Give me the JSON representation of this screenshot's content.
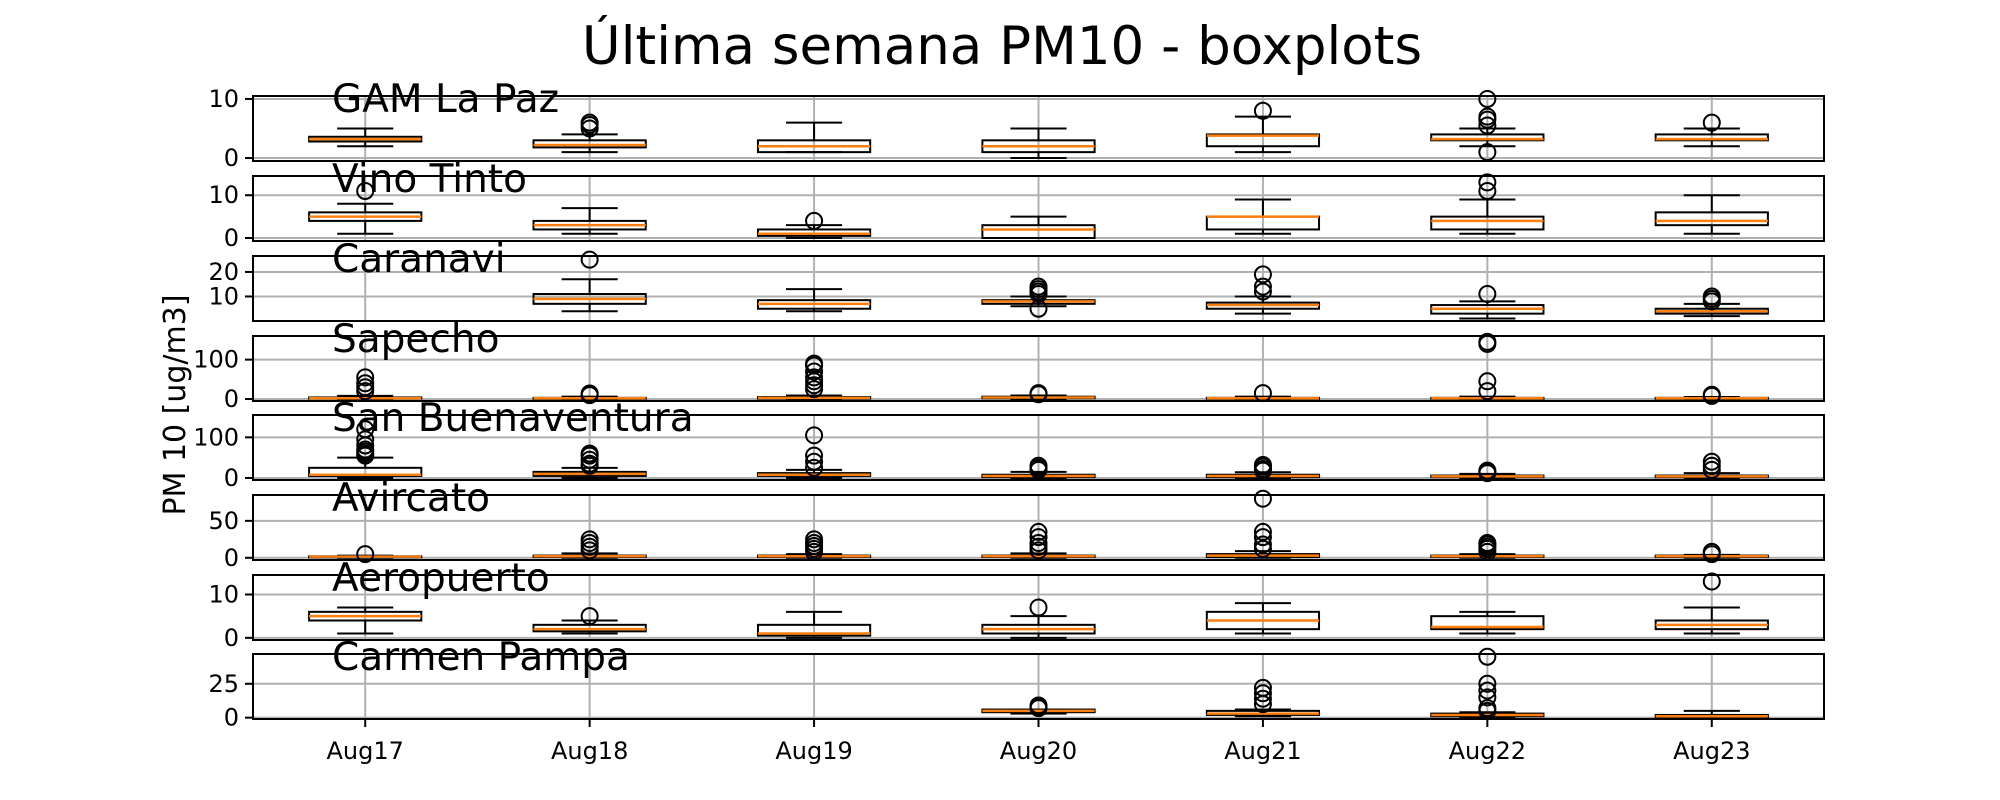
{
  "chart_data": {
    "type": "boxplot",
    "title": "Última semana PM10 - boxplots",
    "ylabel": "PM 10 [ug/m3]",
    "categories": [
      "Aug17",
      "Aug18",
      "Aug19",
      "Aug20",
      "Aug21",
      "Aug22",
      "Aug23"
    ],
    "grid": true,
    "colors": {
      "box": "#000000",
      "median": "#ff7f0e",
      "grid": "#b0b0b0"
    },
    "panels": [
      {
        "name": "GAM La Paz",
        "ylim": [
          -0.5,
          10.5
        ],
        "yticks": [
          0,
          10
        ],
        "boxes": [
          {
            "whislo": 2,
            "q1": 2.8,
            "med": 3.2,
            "q3": 3.6,
            "whishi": 5,
            "fliers": []
          },
          {
            "whislo": 1,
            "q1": 1.8,
            "med": 2.2,
            "q3": 3,
            "whishi": 4,
            "fliers": [
              5,
              5.6,
              6
            ]
          },
          {
            "whislo": 1,
            "q1": 1,
            "med": 2,
            "q3": 3,
            "whishi": 6,
            "fliers": []
          },
          {
            "whislo": 0,
            "q1": 1,
            "med": 2,
            "q3": 3,
            "whishi": 5,
            "fliers": []
          },
          {
            "whislo": 1,
            "q1": 2,
            "med": 3.8,
            "q3": 4,
            "whishi": 7,
            "fliers": [
              8
            ]
          },
          {
            "whislo": 2,
            "q1": 3,
            "med": 3.2,
            "q3": 4,
            "whishi": 5,
            "fliers": [
              1,
              5.5,
              6.5,
              7,
              10
            ]
          },
          {
            "whislo": 2,
            "q1": 3,
            "med": 3.2,
            "q3": 4,
            "whishi": 5,
            "fliers": [
              6
            ]
          }
        ]
      },
      {
        "name": "Vino Tinto",
        "ylim": [
          -0.7,
          14.5
        ],
        "yticks": [
          0,
          10
        ],
        "boxes": [
          {
            "whislo": 1,
            "q1": 4,
            "med": 5,
            "q3": 6,
            "whishi": 8,
            "fliers": [
              11
            ]
          },
          {
            "whislo": 1,
            "q1": 2,
            "med": 3,
            "q3": 4,
            "whishi": 7,
            "fliers": []
          },
          {
            "whislo": 0,
            "q1": 0.5,
            "med": 1,
            "q3": 2,
            "whishi": 3,
            "fliers": [
              4
            ]
          },
          {
            "whislo": 0,
            "q1": 0,
            "med": 2,
            "q3": 3,
            "whishi": 5,
            "fliers": []
          },
          {
            "whislo": 1,
            "q1": 2,
            "med": 5,
            "q3": 5,
            "whishi": 9,
            "fliers": []
          },
          {
            "whislo": 1,
            "q1": 2,
            "med": 4,
            "q3": 5,
            "whishi": 9,
            "fliers": [
              11,
              13
            ]
          },
          {
            "whislo": 1,
            "q1": 3,
            "med": 4,
            "q3": 6,
            "whishi": 10,
            "fliers": []
          }
        ]
      },
      {
        "name": "Caranavi",
        "ylim": [
          0,
          26.5
        ],
        "yticks": [
          10,
          20
        ],
        "boxes": null,
        "boxes_list": [
          null,
          {
            "whislo": 4,
            "q1": 7,
            "med": 9,
            "q3": 11,
            "whishi": 17,
            "fliers": [
              25
            ]
          },
          {
            "whislo": 4,
            "q1": 5,
            "med": 7,
            "q3": 8.5,
            "whishi": 13,
            "fliers": []
          },
          {
            "whislo": 6,
            "q1": 7,
            "med": 8,
            "q3": 8.5,
            "whishi": 10,
            "fliers": [
              5,
              11,
              12,
              13,
              14
            ]
          },
          {
            "whislo": 3,
            "q1": 5,
            "med": 6.5,
            "q3": 7.5,
            "whishi": 10,
            "fliers": [
              12,
              14,
              19
            ]
          },
          {
            "whislo": 1,
            "q1": 3,
            "med": 5,
            "q3": 6.5,
            "whishi": 8,
            "fliers": [
              11
            ]
          },
          {
            "whislo": 2,
            "q1": 3,
            "med": 4,
            "q3": 5,
            "whishi": 7,
            "fliers": [
              8,
              9,
              10
            ]
          }
        ]
      },
      {
        "name": "Sapecho",
        "ylim": [
          -5,
          160
        ],
        "yticks": [
          0,
          100
        ],
        "boxes_list": [
          {
            "whislo": 0,
            "q1": 1,
            "med": 2,
            "q3": 4,
            "whishi": 8,
            "fliers": [
              20,
              30,
              40,
              55
            ]
          },
          {
            "whislo": 0,
            "q1": 1,
            "med": 2,
            "q3": 3,
            "whishi": 6,
            "fliers": [
              10,
              14
            ]
          },
          {
            "whislo": 0,
            "q1": 1,
            "med": 3,
            "q3": 5,
            "whishi": 9,
            "fliers": [
              25,
              35,
              45,
              55,
              70,
              85,
              90
            ]
          },
          {
            "whislo": 0,
            "q1": 2,
            "med": 4,
            "q3": 6,
            "whishi": 9,
            "fliers": [
              12,
              15
            ]
          },
          {
            "whislo": 0,
            "q1": 1,
            "med": 2,
            "q3": 3,
            "whishi": 6,
            "fliers": [
              15
            ]
          },
          {
            "whislo": 0,
            "q1": 1,
            "med": 2,
            "q3": 3,
            "whishi": 6,
            "fliers": [
              20,
              45,
              140,
              145
            ]
          },
          {
            "whislo": 0,
            "q1": 1,
            "med": 2,
            "q3": 3,
            "whishi": 5,
            "fliers": [
              8,
              11
            ]
          }
        ]
      },
      {
        "name": "San Buenaventura",
        "ylim": [
          -5,
          155
        ],
        "yticks": [
          0,
          100
        ],
        "boxes_list": [
          {
            "whislo": 0,
            "q1": 5,
            "med": 8,
            "q3": 25,
            "whishi": 50,
            "fliers": [
              55,
              60,
              65,
              70,
              80,
              95,
              120
            ]
          },
          {
            "whislo": 0,
            "q1": 5,
            "med": 10,
            "q3": 15,
            "whishi": 25,
            "fliers": [
              30,
              35,
              45,
              55,
              60
            ]
          },
          {
            "whislo": 0,
            "q1": 5,
            "med": 8,
            "q3": 12,
            "whishi": 20,
            "fliers": [
              25,
              40,
              55,
              105
            ]
          },
          {
            "whislo": 0,
            "q1": 2,
            "med": 5,
            "q3": 8,
            "whishi": 15,
            "fliers": [
              20,
              25,
              30
            ]
          },
          {
            "whislo": 0,
            "q1": 2,
            "med": 5,
            "q3": 8,
            "whishi": 14,
            "fliers": [
              18,
              22,
              28,
              32
            ]
          },
          {
            "whislo": 0,
            "q1": 2,
            "med": 4,
            "q3": 6,
            "whishi": 10,
            "fliers": [
              12,
              15,
              18
            ]
          },
          {
            "whislo": 0,
            "q1": 2,
            "med": 4,
            "q3": 6,
            "whishi": 12,
            "fliers": [
              20,
              30,
              40
            ]
          }
        ]
      },
      {
        "name": "Avircato",
        "ylim": [
          -3,
          85
        ],
        "yticks": [
          0,
          50
        ],
        "boxes_list": [
          {
            "whislo": 0,
            "q1": 1,
            "med": 1.5,
            "q3": 2,
            "whishi": 3,
            "fliers": [
              5
            ]
          },
          {
            "whislo": 0,
            "q1": 1,
            "med": 2,
            "q3": 3,
            "whishi": 6,
            "fliers": [
              10,
              15,
              20,
              25
            ]
          },
          {
            "whislo": 0,
            "q1": 1,
            "med": 2,
            "q3": 3,
            "whishi": 5,
            "fliers": [
              8,
              12,
              16,
              20,
              25
            ]
          },
          {
            "whislo": 0,
            "q1": 1,
            "med": 2,
            "q3": 3,
            "whishi": 6,
            "fliers": [
              10,
              15,
              20,
              28,
              35
            ]
          },
          {
            "whislo": 0,
            "q1": 1,
            "med": 3,
            "q3": 5,
            "whishi": 9,
            "fliers": [
              12,
              18,
              28,
              35,
              80
            ]
          },
          {
            "whislo": 0,
            "q1": 1,
            "med": 2,
            "q3": 3,
            "whishi": 5,
            "fliers": [
              8,
              12,
              15,
              18,
              20
            ]
          },
          {
            "whislo": 0,
            "q1": 1,
            "med": 2,
            "q3": 3,
            "whishi": 4,
            "fliers": [
              5,
              8
            ]
          }
        ]
      },
      {
        "name": "Aeropuerto",
        "ylim": [
          -0.5,
          14.5
        ],
        "yticks": [
          0,
          10
        ],
        "boxes_list": [
          {
            "whislo": 1,
            "q1": 4,
            "med": 5,
            "q3": 6,
            "whishi": 7,
            "fliers": []
          },
          {
            "whislo": 1,
            "q1": 1.5,
            "med": 2,
            "q3": 3,
            "whishi": 4,
            "fliers": [
              5
            ]
          },
          {
            "whislo": 0,
            "q1": 0.5,
            "med": 1,
            "q3": 3,
            "whishi": 6,
            "fliers": []
          },
          {
            "whislo": 0,
            "q1": 1,
            "med": 2,
            "q3": 3,
            "whishi": 5,
            "fliers": [
              7
            ]
          },
          {
            "whislo": 1,
            "q1": 2,
            "med": 4,
            "q3": 6,
            "whishi": 8,
            "fliers": []
          },
          {
            "whislo": 1,
            "q1": 2,
            "med": 2.5,
            "q3": 5,
            "whishi": 6,
            "fliers": []
          },
          {
            "whislo": 1,
            "q1": 2,
            "med": 3,
            "q3": 4,
            "whishi": 7,
            "fliers": [
              13
            ]
          }
        ]
      },
      {
        "name": "Carmen Pampa",
        "ylim": [
          -1,
          47
        ],
        "yticks": [
          0,
          25
        ],
        "boxes_list": [
          null,
          null,
          null,
          {
            "whislo": 3,
            "q1": 4,
            "med": 5,
            "q3": 6,
            "whishi": 6,
            "fliers": [
              7,
              8,
              9
            ]
          },
          {
            "whislo": 1,
            "q1": 2,
            "med": 3,
            "q3": 5,
            "whishi": 6,
            "fliers": [
              10,
              14,
              18,
              22
            ]
          },
          {
            "whislo": 0,
            "q1": 1,
            "med": 2,
            "q3": 3,
            "whishi": 4,
            "fliers": [
              5,
              7,
              15,
              20,
              25,
              45
            ]
          },
          {
            "whislo": 0,
            "q1": 0.5,
            "med": 1,
            "q3": 2,
            "whishi": 5,
            "fliers": []
          }
        ]
      }
    ]
  }
}
